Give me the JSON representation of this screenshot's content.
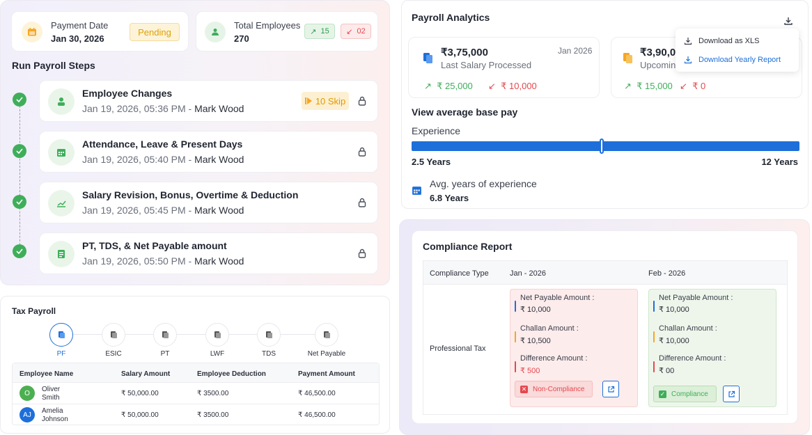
{
  "summary": {
    "payment_date_label": "Payment Date",
    "payment_date": "Jan 30, 2026",
    "status": "Pending",
    "total_employees_label": "Total Employees",
    "total_employees": "270",
    "up_count": "15",
    "down_count": "02"
  },
  "steps": {
    "title": "Run Payroll Steps",
    "items": [
      {
        "title": "Employee Changes",
        "date": "Jan 19, 2026, 05:36 PM - ",
        "by": "Mark Wood",
        "skip": "10 Skip"
      },
      {
        "title": "Attendance, Leave & Present Days",
        "date": "Jan 19, 2026, 05:40 PM - ",
        "by": "Mark Wood"
      },
      {
        "title": "Salary Revision, Bonus, Overtime & Deduction",
        "date": "Jan 19, 2026, 05:45 PM - ",
        "by": "Mark Wood"
      },
      {
        "title": "PT,  TDS,  & Net Payable amount",
        "date": "Jan 19, 2026, 05:50 PM - ",
        "by": "Mark Wood"
      }
    ]
  },
  "tax": {
    "title": "Tax Payroll",
    "tabs": [
      "PF",
      "ESIC",
      "PT",
      "LWF",
      "TDS",
      "Net Payable"
    ],
    "headers": [
      "Employee Name",
      "Salary Amount",
      "Employee Deduction",
      "Payment Amount"
    ],
    "rows": [
      {
        "initials": "O",
        "name1": "Oliver",
        "name2": "Smith",
        "salary": "₹ 50,000.00",
        "deduction": "₹ 3500.00",
        "payment": "₹ 46,500.00",
        "color": "#4caf50"
      },
      {
        "initials": "AJ",
        "name1": "Amelia",
        "name2": "Johnson",
        "salary": "₹ 50,000.00",
        "deduction": "₹ 3500.00",
        "payment": "₹ 46,500.00",
        "color": "#1e6fd9"
      }
    ]
  },
  "analytics": {
    "title": "Payroll Analytics",
    "card1": {
      "amount": "₹3,75,000",
      "label": "Last Salary Processed",
      "month": "Jan 2026",
      "up": "₹ 25,000",
      "down": "₹ 10,000"
    },
    "card2": {
      "amount": "₹3,90,00",
      "label": "Upcomin",
      "up": "₹ 15,000",
      "down": "₹ 0"
    },
    "menu": {
      "xls": "Download as XLS",
      "yearly": "Download Yearly Report"
    },
    "base_pay": "View average base pay",
    "experience": "Experience",
    "slider_min": "2.5 Years",
    "slider_max": "12 Years",
    "slider_fraction": 0.49,
    "avg_label": "Avg. years of experience",
    "avg_value": "6.8 Years"
  },
  "compliance": {
    "title": "Compliance Report",
    "col_type": "Compliance Type",
    "col_jan": "Jan - 2026",
    "col_feb": "Feb - 2026",
    "row_label": "Professional Tax",
    "net_label": "Net Payable Amount :",
    "challan_label": "Challan Amount :",
    "diff_label": "Difference Amount :",
    "jan": {
      "net": "₹ 10,000",
      "challan": "₹ 10,500",
      "diff": "₹ 500",
      "status": "Non-Compliance"
    },
    "feb": {
      "net": "₹ 10,000",
      "challan": "₹ 10,000",
      "diff": "₹ 00",
      "status": "Compliance"
    }
  },
  "colors": {
    "green": "#3fae5a",
    "blue": "#1e6fd9",
    "red": "#e5484d",
    "amber": "#f5a623"
  }
}
